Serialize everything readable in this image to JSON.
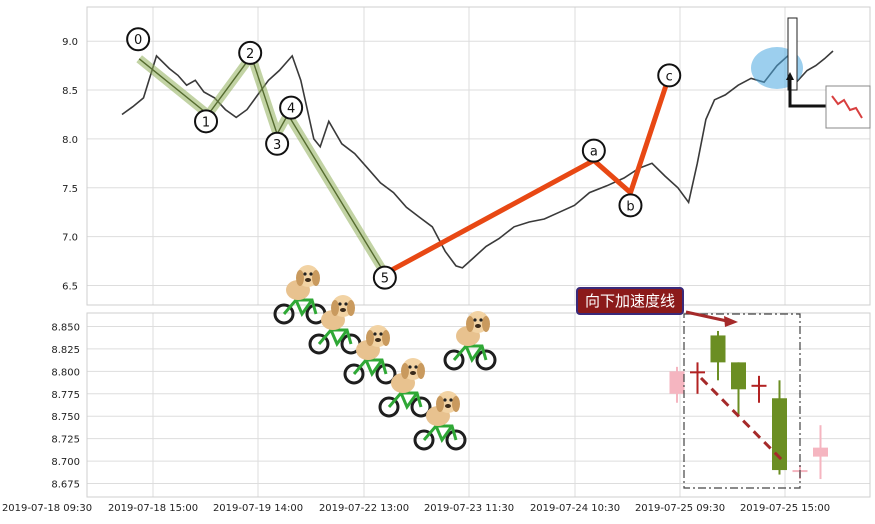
{
  "chart_data": [
    {
      "type": "line",
      "panel": "upper",
      "ylim": [
        6.3,
        9.35
      ],
      "yticks": [
        "6.5",
        "7.0",
        "7.5",
        "8.0",
        "8.5",
        "9.0"
      ],
      "grid": true,
      "price_line": {
        "color": "#3a3a3a",
        "points": [
          [
            0,
            8.25
          ],
          [
            0.5,
            8.33
          ],
          [
            1,
            8.42
          ],
          [
            1.6,
            8.85
          ],
          [
            2.2,
            8.72
          ],
          [
            2.6,
            8.65
          ],
          [
            3.0,
            8.55
          ],
          [
            3.4,
            8.6
          ],
          [
            3.8,
            8.48
          ],
          [
            4.3,
            8.42
          ],
          [
            4.8,
            8.3
          ],
          [
            5.3,
            8.22
          ],
          [
            5.8,
            8.3
          ],
          [
            6.3,
            8.45
          ],
          [
            6.8,
            8.6
          ],
          [
            7.3,
            8.7
          ],
          [
            7.9,
            8.85
          ],
          [
            8.3,
            8.6
          ],
          [
            8.6,
            8.3
          ],
          [
            8.9,
            8.0
          ],
          [
            9.2,
            7.92
          ],
          [
            9.6,
            8.18
          ],
          [
            10.2,
            7.95
          ],
          [
            10.8,
            7.85
          ],
          [
            11.4,
            7.7
          ],
          [
            12.0,
            7.55
          ],
          [
            12.6,
            7.45
          ],
          [
            13.2,
            7.3
          ],
          [
            13.8,
            7.2
          ],
          [
            14.4,
            7.1
          ],
          [
            15.0,
            6.85
          ],
          [
            15.5,
            6.7
          ],
          [
            15.8,
            6.68
          ],
          [
            16.3,
            6.78
          ],
          [
            16.9,
            6.9
          ],
          [
            17.5,
            6.98
          ],
          [
            18.2,
            7.1
          ],
          [
            18.9,
            7.15
          ],
          [
            19.6,
            7.18
          ],
          [
            20.3,
            7.25
          ],
          [
            21.0,
            7.32
          ],
          [
            21.7,
            7.45
          ],
          [
            22.5,
            7.52
          ],
          [
            23.3,
            7.6
          ],
          [
            24.0,
            7.7
          ],
          [
            24.6,
            7.75
          ],
          [
            25.2,
            7.62
          ],
          [
            25.8,
            7.5
          ],
          [
            26.3,
            7.35
          ],
          [
            26.7,
            7.75
          ],
          [
            27.1,
            8.2
          ],
          [
            27.5,
            8.4
          ],
          [
            28.0,
            8.45
          ],
          [
            28.6,
            8.55
          ],
          [
            29.2,
            8.62
          ],
          [
            29.8,
            8.58
          ],
          [
            30.4,
            8.75
          ],
          [
            30.9,
            8.85
          ],
          [
            31.3,
            8.58
          ],
          [
            31.8,
            8.7
          ],
          [
            32.2,
            8.75
          ],
          [
            32.6,
            8.82
          ],
          [
            33.0,
            8.9
          ]
        ]
      },
      "wave_labels": [
        "0",
        "1",
        "2",
        "3",
        "4",
        "5",
        "a",
        "b",
        "c"
      ],
      "waves": {
        "impulse": {
          "color": "#8fae5a",
          "points": [
            [
              0.8,
              8.82
            ],
            [
              4.0,
              8.25
            ],
            [
              6.0,
              8.85
            ],
            [
              7.2,
              8.05
            ],
            [
              7.7,
              8.25
            ],
            [
              12.2,
              6.62
            ]
          ]
        },
        "correction": {
          "color": "#e84814",
          "points": [
            [
              12.2,
              6.62
            ],
            [
              21.9,
              7.78
            ],
            [
              23.6,
              7.45
            ],
            [
              25.4,
              8.65
            ]
          ]
        }
      },
      "wave_markers": [
        {
          "label": "0",
          "x": 0.75,
          "y": 9.02
        },
        {
          "label": "1",
          "x": 3.9,
          "y": 8.18
        },
        {
          "label": "2",
          "x": 5.95,
          "y": 8.88
        },
        {
          "label": "3",
          "x": 7.2,
          "y": 7.95
        },
        {
          "label": "4",
          "x": 7.85,
          "y": 8.32
        },
        {
          "label": "5",
          "x": 12.2,
          "y": 6.58
        },
        {
          "label": "a",
          "x": 21.9,
          "y": 7.88
        },
        {
          "label": "b",
          "x": 23.6,
          "y": 7.32
        },
        {
          "label": "c",
          "x": 25.4,
          "y": 8.65
        }
      ]
    },
    {
      "type": "candlestick",
      "panel": "lower",
      "ylim": [
        8.66,
        8.865
      ],
      "yticks": [
        "8.675",
        "8.700",
        "8.725",
        "8.750",
        "8.775",
        "8.800",
        "8.825",
        "8.850"
      ],
      "grid": true,
      "annotation": "向下加速度线",
      "candles": [
        {
          "o": 8.8,
          "c": 8.775,
          "h": 8.805,
          "l": 8.765,
          "color": "#f5b5c0"
        },
        {
          "o": 8.8,
          "c": 8.8,
          "h": 8.81,
          "l": 8.775,
          "color": "#b22222"
        },
        {
          "o": 8.81,
          "c": 8.84,
          "h": 8.845,
          "l": 8.79,
          "color": "#6b8e23"
        },
        {
          "o": 8.81,
          "c": 8.78,
          "h": 8.81,
          "l": 8.75,
          "color": "#6b8e23"
        },
        {
          "o": 8.785,
          "c": 8.785,
          "h": 8.795,
          "l": 8.765,
          "color": "#b22222"
        },
        {
          "o": 8.77,
          "c": 8.69,
          "h": 8.79,
          "l": 8.685,
          "color": "#6b8e23"
        },
        {
          "o": 8.69,
          "c": 8.69,
          "h": 8.695,
          "l": 8.68,
          "color": "#f5b5c0"
        },
        {
          "o": 8.705,
          "c": 8.715,
          "h": 8.74,
          "l": 8.68,
          "color": "#f5b5c0"
        }
      ]
    }
  ],
  "x_axis_labels": [
    "2019-07-18 09:30",
    "2019-07-18 15:00",
    "2019-07-19 14:00",
    "2019-07-22 13:00",
    "2019-07-23 11:30",
    "2019-07-24 10:30",
    "2019-07-25 09:30",
    "2019-07-25 15:00"
  ],
  "decorations": {
    "puppy_bicycles": 6,
    "highlight_color": "#4aa8e0"
  }
}
